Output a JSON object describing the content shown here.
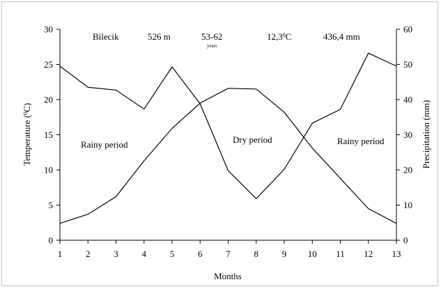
{
  "chart_data": {
    "type": "line",
    "title": "",
    "xlabel": "Months",
    "ylabel_left": "Temperature (°C)",
    "ylabel_right": "Precipitation (mm)",
    "x": [
      1,
      2,
      3,
      4,
      5,
      6,
      7,
      8,
      9,
      10,
      11,
      12,
      13
    ],
    "x_ticks": [
      "1",
      "2",
      "3",
      "4",
      "5",
      "6",
      "7",
      "8",
      "9",
      "10",
      "11",
      "12",
      "13"
    ],
    "ylim_left": [
      0,
      30
    ],
    "ylim_right": [
      0,
      60
    ],
    "y_ticks_left": [
      "0",
      "5",
      "10",
      "15",
      "20",
      "25",
      "30"
    ],
    "y_ticks_right": [
      "0",
      "10",
      "20",
      "30",
      "40",
      "50",
      "60"
    ],
    "grid": false,
    "legend": "none",
    "series": [
      {
        "axis": "left",
        "values": [
          2.4,
          3.7,
          6.2,
          11.3,
          15.9,
          19.5,
          21.6,
          21.5,
          18.2,
          13.1,
          8.8,
          4.5,
          2.4
        ]
      },
      {
        "axis": "right",
        "values": [
          49.5,
          43.5,
          42.7,
          37.3,
          49.3,
          38.8,
          19.8,
          11.8,
          20.2,
          33.3,
          37.2,
          53.2,
          49.5
        ]
      }
    ],
    "annotations": {
      "station": "Bilecik",
      "altitude": "526 m",
      "period": "53-62",
      "period_unit": "years",
      "mean_temp": "12,3",
      "mean_temp_unit": "C",
      "annual_precip": "436,4 mm",
      "zone_left": "Rainy period",
      "zone_middle": "Dry period",
      "zone_right": "Rainy period"
    }
  }
}
